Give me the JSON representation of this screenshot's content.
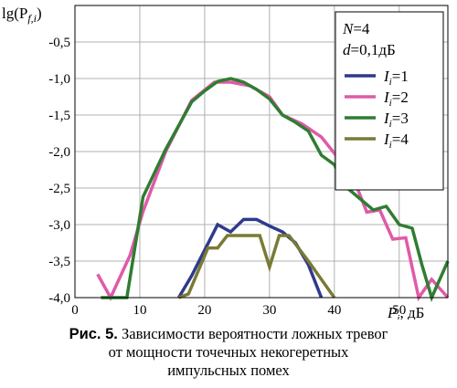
{
  "chart_data": {
    "type": "line",
    "ylabel": "lg(P",
    "ylabel_sub": "f,i",
    "ylabel_close": ")",
    "xlabel": "P",
    "xlabel_sub": "i",
    "xlabel_unit": ", дБ",
    "xlim": [
      0,
      57.5
    ],
    "ylim": [
      -4.0,
      0
    ],
    "x_ticks": [
      {
        "v": 0,
        "label": "0"
      },
      {
        "v": 10,
        "label": "10"
      },
      {
        "v": 20,
        "label": "20"
      },
      {
        "v": 30,
        "label": "30"
      },
      {
        "v": 40,
        "label": "40"
      },
      {
        "v": 50,
        "label": "50"
      }
    ],
    "y_ticks": [
      {
        "v": -0.5,
        "label": "-0,5"
      },
      {
        "v": -1.0,
        "label": "-1,0"
      },
      {
        "v": -1.5,
        "label": "-1,5"
      },
      {
        "v": -2.0,
        "label": "-2,0"
      },
      {
        "v": -2.5,
        "label": "-2,5"
      },
      {
        "v": -3.0,
        "label": "-3,0"
      },
      {
        "v": -3.5,
        "label": "-3,5"
      },
      {
        "v": -4.0,
        "label": "-4,0"
      }
    ],
    "grid": true,
    "legend_placement": "top-right",
    "legend_params": [
      {
        "name": "N",
        "value": "=4"
      },
      {
        "name": "d",
        "value": "=0,1дБ"
      }
    ],
    "series": [
      {
        "name": "I",
        "sub": "i",
        "value": "=1",
        "color": "#2e3a8c",
        "x": [
          16,
          18,
          22,
          24,
          26,
          28,
          30,
          32,
          34,
          36,
          38
        ],
        "y": [
          -4.0,
          -3.7,
          -3.0,
          -3.1,
          -2.93,
          -2.93,
          -3.02,
          -3.1,
          -3.25,
          -3.55,
          -4.0
        ]
      },
      {
        "name": "I",
        "sub": "i",
        "value": "=2",
        "color": "#e05aa8",
        "x": [
          3.5,
          5.5,
          8.5,
          10.5,
          14,
          18,
          21.5,
          24,
          27,
          30,
          32,
          35,
          38,
          40.5,
          43,
          45,
          47,
          49,
          51,
          53,
          55,
          57.5
        ],
        "y": [
          -3.68,
          -4.0,
          -3.42,
          -2.82,
          -2.0,
          -1.3,
          -1.05,
          -1.05,
          -1.1,
          -1.25,
          -1.5,
          -1.62,
          -1.8,
          -2.08,
          -2.38,
          -2.83,
          -2.8,
          -3.2,
          -3.18,
          -4.0,
          -3.75,
          -4.0
        ]
      },
      {
        "name": "I",
        "sub": "i",
        "value": "=3",
        "color": "#2f7d32",
        "x": [
          4,
          8,
          10.5,
          14,
          18,
          20,
          22,
          24,
          26,
          28,
          30,
          32,
          34,
          36,
          38,
          40,
          42,
          44,
          46,
          48,
          50,
          52,
          53.5,
          55,
          57.5
        ],
        "y": [
          -4.0,
          -4.0,
          -2.62,
          -1.97,
          -1.32,
          -1.17,
          -1.04,
          -1.0,
          -1.05,
          -1.15,
          -1.28,
          -1.5,
          -1.6,
          -1.72,
          -2.05,
          -2.18,
          -2.5,
          -2.65,
          -2.8,
          -2.75,
          -3.0,
          -3.05,
          -3.55,
          -4.0,
          -3.5
        ]
      },
      {
        "name": "I",
        "sub": "i",
        "value": "=4",
        "color": "#7a7a35",
        "x": [
          16,
          17.5,
          20.5,
          22,
          23.5,
          27,
          28.5,
          30,
          31.5,
          33,
          36,
          40
        ],
        "y": [
          -4.0,
          -3.95,
          -3.32,
          -3.32,
          -3.15,
          -3.15,
          -3.15,
          -3.58,
          -3.15,
          -3.15,
          -3.5,
          -4.0
        ]
      }
    ]
  },
  "caption": {
    "fig_label": "Рис. 5.",
    "line1": " Зависимости вероятности ложных тревог",
    "line2": "от мощности точечных некогеретных",
    "line3": "импульсных помех"
  }
}
